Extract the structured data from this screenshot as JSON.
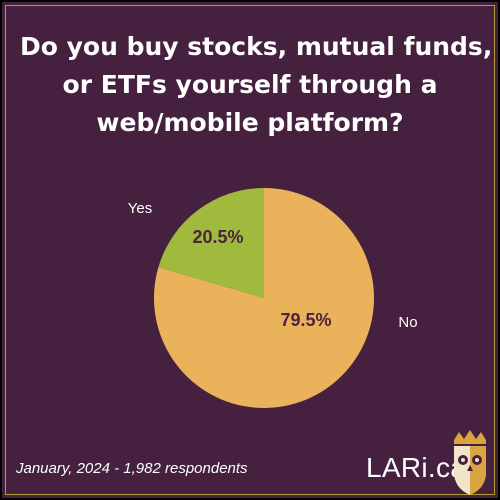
{
  "title": {
    "line1": "Do you buy stocks, mutual funds,",
    "line2": "or ETFs yourself through a",
    "line3": "web/mobile platform?"
  },
  "footer": {
    "source": "January, 2024 - 1,982 respondents",
    "brand": "LARi.ca"
  },
  "logo": {
    "icon": "owl-crest-icon"
  },
  "colors": {
    "background": "#46213f",
    "yes": "#9fba3c",
    "no": "#eab25a",
    "label_inside": "#4a2340",
    "label_outside": "#ffffff"
  },
  "chart_data": {
    "type": "pie",
    "title": "Do you buy stocks, mutual funds, or ETFs yourself through a web/mobile platform?",
    "slices": [
      {
        "label": "Yes",
        "value": 20.5,
        "value_label": "20.5%",
        "color": "#9fba3c"
      },
      {
        "label": "No",
        "value": 79.5,
        "value_label": "79.5%",
        "color": "#eab25a"
      }
    ]
  }
}
